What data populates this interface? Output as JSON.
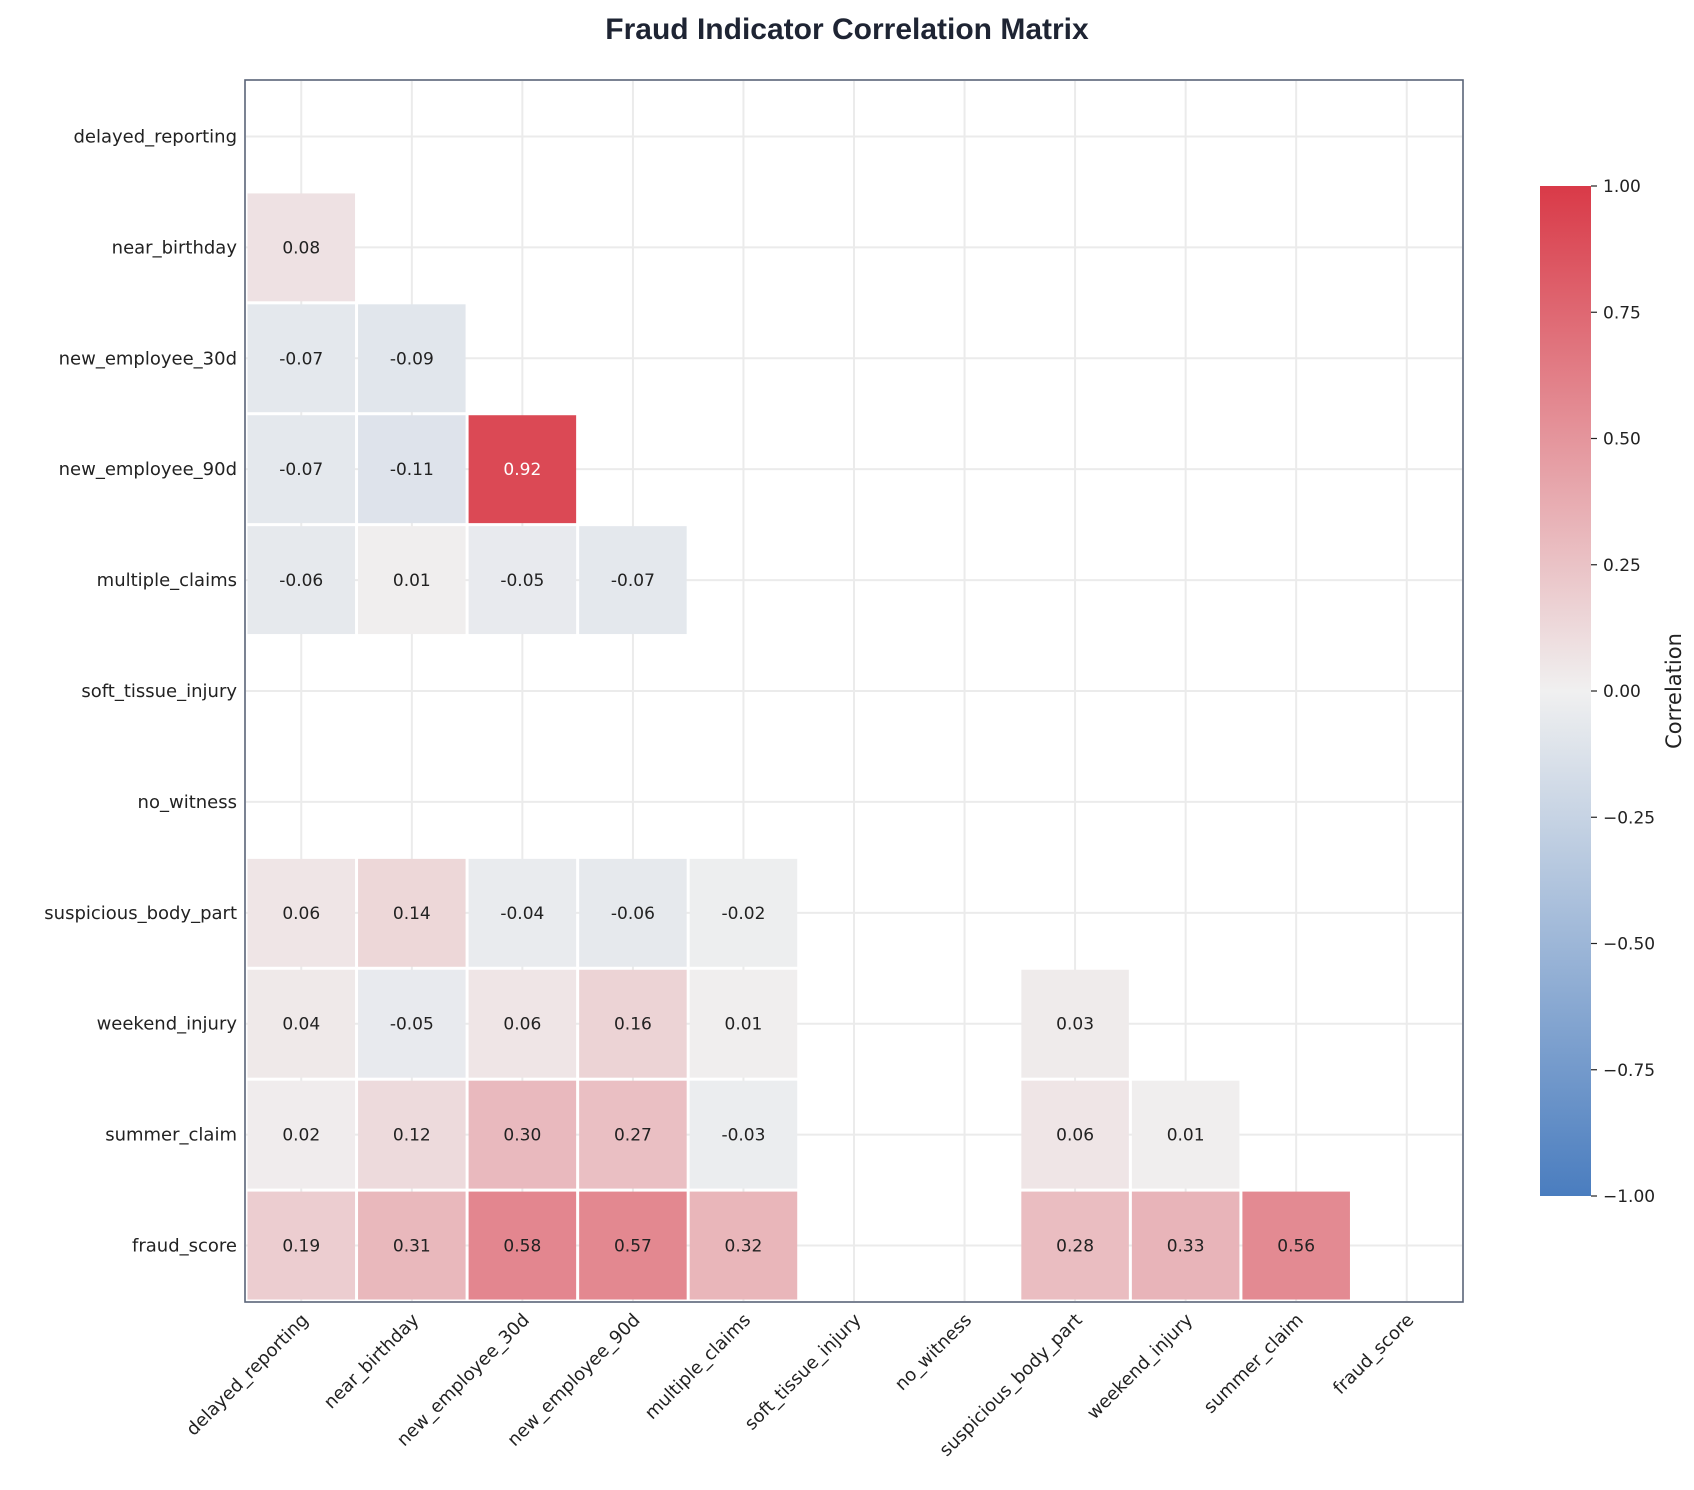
{
  "chart_data": {
    "type": "heatmap",
    "title": "Fraud Indicator Correlation Matrix",
    "variables": [
      "delayed_reporting",
      "near_birthday",
      "new_employee_30d",
      "new_employee_90d",
      "multiple_claims",
      "soft_tissue_injury",
      "no_witness",
      "suspicious_body_part",
      "weekend_injury",
      "summer_claim",
      "fraud_score"
    ],
    "mask": "upper-triangle-and-diagonal",
    "values": [
      [
        null,
        null,
        null,
        null,
        null,
        null,
        null,
        null,
        null,
        null,
        null
      ],
      [
        0.08,
        null,
        null,
        null,
        null,
        null,
        null,
        null,
        null,
        null,
        null
      ],
      [
        -0.07,
        -0.09,
        null,
        null,
        null,
        null,
        null,
        null,
        null,
        null,
        null
      ],
      [
        -0.07,
        -0.11,
        0.92,
        null,
        null,
        null,
        null,
        null,
        null,
        null,
        null
      ],
      [
        -0.06,
        0.01,
        -0.05,
        -0.07,
        null,
        null,
        null,
        null,
        null,
        null,
        null
      ],
      [
        null,
        null,
        null,
        null,
        null,
        null,
        null,
        null,
        null,
        null,
        null
      ],
      [
        null,
        null,
        null,
        null,
        null,
        null,
        null,
        null,
        null,
        null,
        null
      ],
      [
        0.06,
        0.14,
        -0.04,
        -0.06,
        -0.02,
        null,
        null,
        null,
        null,
        null,
        null
      ],
      [
        0.04,
        -0.05,
        0.06,
        0.16,
        0.01,
        null,
        null,
        0.03,
        null,
        null,
        null
      ],
      [
        0.02,
        0.12,
        0.3,
        0.27,
        -0.03,
        null,
        null,
        0.06,
        0.01,
        null,
        null
      ],
      [
        0.19,
        0.31,
        0.58,
        0.57,
        0.32,
        null,
        null,
        0.28,
        0.33,
        0.56,
        null
      ]
    ],
    "value_format": "2 decimals",
    "colorbar": {
      "label": "Correlation",
      "range": [
        -1,
        1
      ],
      "ticks": [
        1.0,
        0.75,
        0.5,
        0.25,
        0.0,
        -0.25,
        -0.5,
        -0.75,
        -1.0
      ],
      "tick_labels": [
        "1.00",
        "0.75",
        "0.50",
        "0.25",
        "0.00",
        "−0.25",
        "−0.50",
        "−0.75",
        "−1.00"
      ],
      "colors": {
        "negative": "#4a7dbf",
        "neutral": "#f0f0f0",
        "positive": "#d93a48"
      }
    },
    "grid": true
  }
}
